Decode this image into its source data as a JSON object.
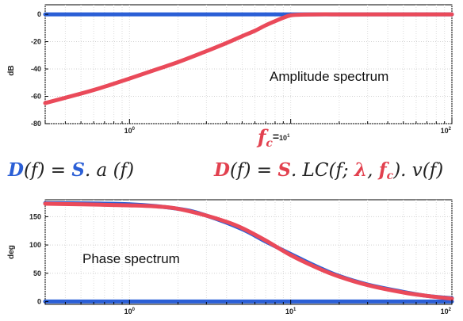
{
  "chart_data": [
    {
      "type": "line",
      "annotation": "Amplitude spectrum",
      "xlabel": "",
      "ylabel": "dB",
      "xscale": "log",
      "xlim": [
        0.3,
        100
      ],
      "ylim": [
        -80,
        7
      ],
      "y_ticks": [
        "0",
        "-20",
        "-40",
        "-60",
        "-80"
      ],
      "y_tick_values": [
        0,
        -20,
        -40,
        -60,
        -80
      ],
      "x_ticks": [
        {
          "base": "10",
          "exp": "0",
          "value": 1
        },
        {
          "base": "10",
          "exp": "1",
          "value": 10
        },
        {
          "base": "10",
          "exp": "2",
          "value": 100
        }
      ],
      "marker": {
        "label": "f",
        "sub": "c",
        "suffix": "=",
        "value": 10
      },
      "grid": true,
      "series": [
        {
          "color": "#2b5fd6",
          "x": [
            0.3,
            100
          ],
          "y": [
            0,
            0
          ]
        },
        {
          "color": "#ea4a5a",
          "x": [
            0.3,
            0.5,
            0.7,
            1,
            1.5,
            2,
            3,
            4,
            5,
            6,
            7,
            8,
            9,
            10,
            12,
            15,
            20,
            30,
            50,
            100
          ],
          "y": [
            -65,
            -58,
            -53,
            -47,
            -40,
            -35,
            -27,
            -21,
            -16,
            -12,
            -8,
            -5,
            -2.5,
            -0.8,
            -0.2,
            0,
            0,
            0,
            0,
            0
          ]
        }
      ]
    },
    {
      "type": "line",
      "annotation": "Phase spectrum",
      "xlabel": "",
      "ylabel": "deg",
      "xscale": "log",
      "xlim": [
        0.3,
        100
      ],
      "ylim": [
        -5,
        180
      ],
      "y_ticks": [
        "150",
        "100",
        "50",
        "0"
      ],
      "y_tick_values": [
        150,
        100,
        50,
        0
      ],
      "x_ticks": [
        {
          "base": "10",
          "exp": "0",
          "value": 1
        },
        {
          "base": "10",
          "exp": "1",
          "value": 10
        },
        {
          "base": "10",
          "exp": "2",
          "value": 100
        }
      ],
      "grid": true,
      "series": [
        {
          "color": "#2b5fd6",
          "x": [
            0.3,
            100
          ],
          "y": [
            0,
            0
          ]
        },
        {
          "color": "#2b5fd6",
          "x": [
            0.3,
            1,
            2,
            3,
            5,
            7,
            10,
            15,
            20,
            30,
            50,
            70,
            100
          ],
          "y": [
            174,
            172,
            164,
            152,
            128,
            106,
            84,
            60,
            45,
            30,
            17,
            10,
            6
          ]
        },
        {
          "color": "#ea4a5a",
          "x": [
            0.3,
            0.5,
            1,
            1.5,
            2,
            3,
            4,
            5,
            7,
            10,
            15,
            20,
            30,
            50,
            70,
            100
          ],
          "y": [
            173,
            172,
            170,
            168,
            164,
            152,
            141,
            130,
            108,
            82,
            58,
            44,
            29,
            16,
            10,
            5
          ]
        }
      ]
    }
  ],
  "equations": {
    "left": {
      "parts": [
        "D",
        "(f) = ",
        "S",
        ". a (f)"
      ]
    },
    "right": {
      "parts": [
        "D",
        "(f) = ",
        "S",
        ". LC",
        "(f; ",
        "λ",
        ", ",
        "f",
        "c",
        "). v(f)"
      ]
    }
  }
}
